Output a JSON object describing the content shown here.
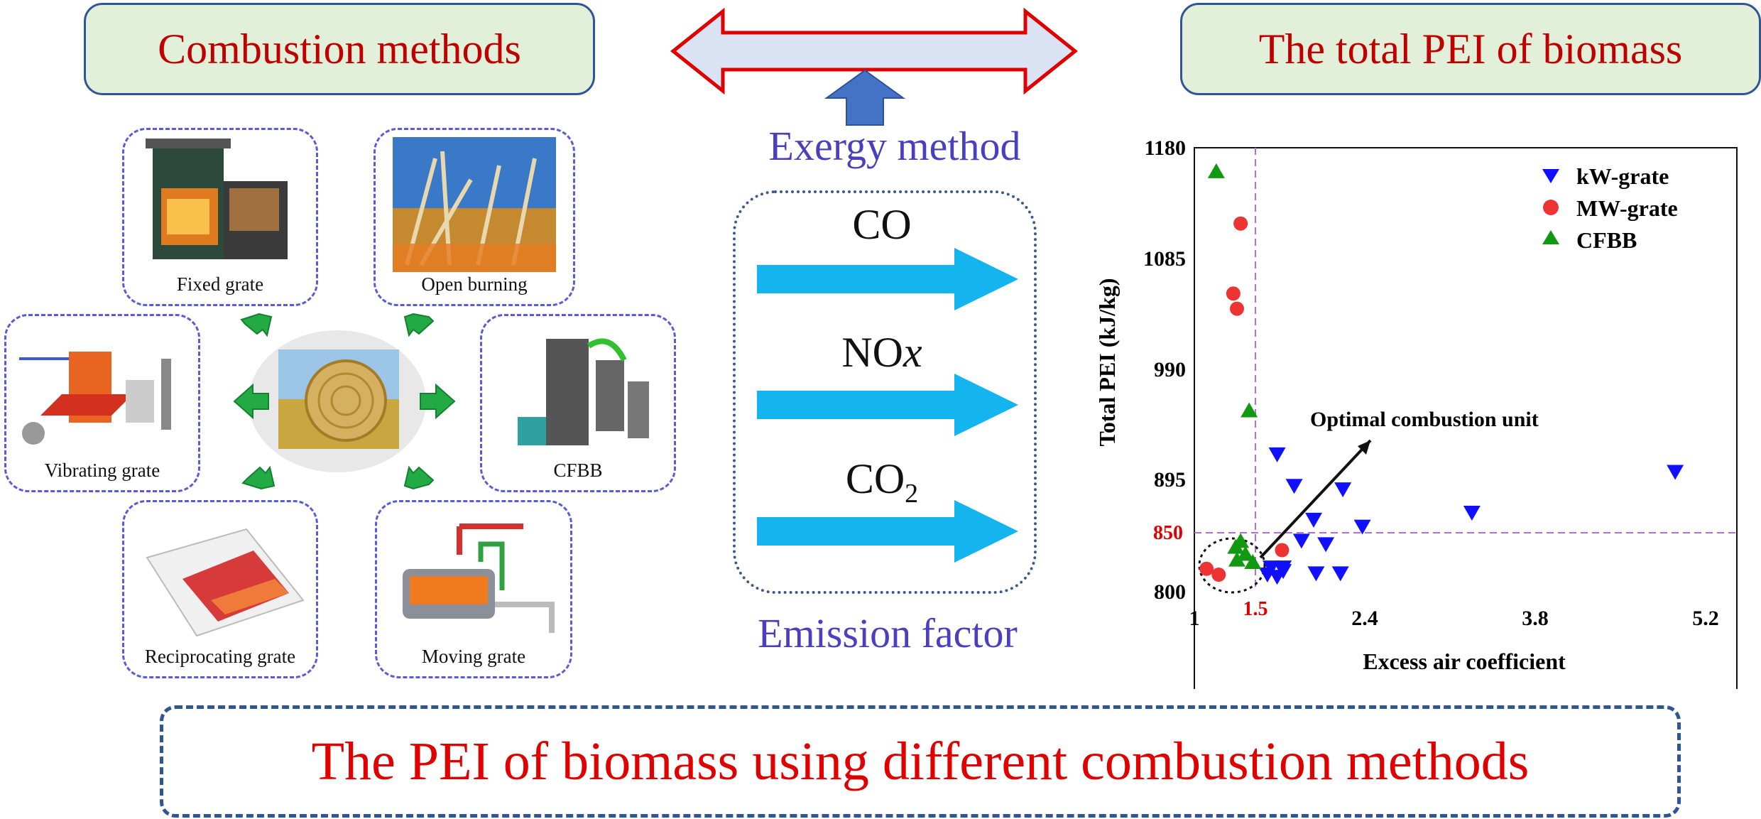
{
  "header": {
    "left_title": "Combustion methods",
    "right_title": "The total PEI of biomass"
  },
  "methods": {
    "fixed_grate": "Fixed grate",
    "open_burning": "Open burning",
    "vibrating_grate": "Vibrating grate",
    "cfbb": "CFBB",
    "reciprocating_grate": "Reciprocating grate",
    "moving_grate": "Moving grate"
  },
  "center": {
    "exergy_method": "Exergy method",
    "emission_factor": "Emission factor",
    "emissions": [
      "CO",
      "NOx",
      "CO2"
    ]
  },
  "footer": {
    "caption": "The PEI of biomass using different combustion methods"
  },
  "colors": {
    "header_fill": "#e2f0d9",
    "header_border": "#2f5597",
    "title_red": "#c00000",
    "method_blue": "#4a3fc0",
    "arrow_cyan": "#14b4ef",
    "green_arrow": "#22aa44",
    "kw_grate": "#1010ff",
    "mw_grate": "#ee3333",
    "cfbb": "#119911"
  },
  "chart_data": {
    "type": "scatter",
    "xlabel": "Excess air coefficient",
    "ylabel": "Total PEI (kJ/kg)",
    "xlim": [
      1.0,
      5.2
    ],
    "ylim": [
      800,
      1180
    ],
    "xticks": [
      "1",
      "2.4",
      "3.8",
      "5.2"
    ],
    "yticks": [
      "800",
      "895",
      "990",
      "1085",
      "1180"
    ],
    "reference_lines": {
      "x": 1.5,
      "y": 850,
      "x_label": "1.5",
      "y_label": "850"
    },
    "annotation": "Optimal combustion unit",
    "legend_position": "top-right",
    "series": [
      {
        "name": "kW-grate",
        "marker": "triangle-down",
        "color": "#1010ff",
        "points": [
          [
            1.68,
            917
          ],
          [
            1.82,
            890
          ],
          [
            2.22,
            887
          ],
          [
            1.98,
            861
          ],
          [
            2.38,
            855
          ],
          [
            1.88,
            843
          ],
          [
            2.08,
            840
          ],
          [
            1.63,
            820
          ],
          [
            1.73,
            820
          ],
          [
            1.73,
            817
          ],
          [
            1.6,
            814
          ],
          [
            1.68,
            812
          ],
          [
            2.0,
            815
          ],
          [
            2.2,
            815
          ],
          [
            3.28,
            867
          ],
          [
            4.95,
            902
          ]
        ]
      },
      {
        "name": "MW-grate",
        "marker": "circle",
        "color": "#ee3333",
        "points": [
          [
            1.38,
            1115
          ],
          [
            1.32,
            1055
          ],
          [
            1.35,
            1042
          ],
          [
            1.72,
            835
          ],
          [
            1.1,
            819
          ],
          [
            1.2,
            814
          ]
        ]
      },
      {
        "name": "CFBB",
        "marker": "triangle-up",
        "color": "#119911",
        "points": [
          [
            1.18,
            1160
          ],
          [
            1.45,
            955
          ],
          [
            1.38,
            843
          ],
          [
            1.34,
            838
          ],
          [
            1.42,
            832
          ],
          [
            1.35,
            827
          ],
          [
            1.48,
            825
          ]
        ]
      }
    ]
  }
}
